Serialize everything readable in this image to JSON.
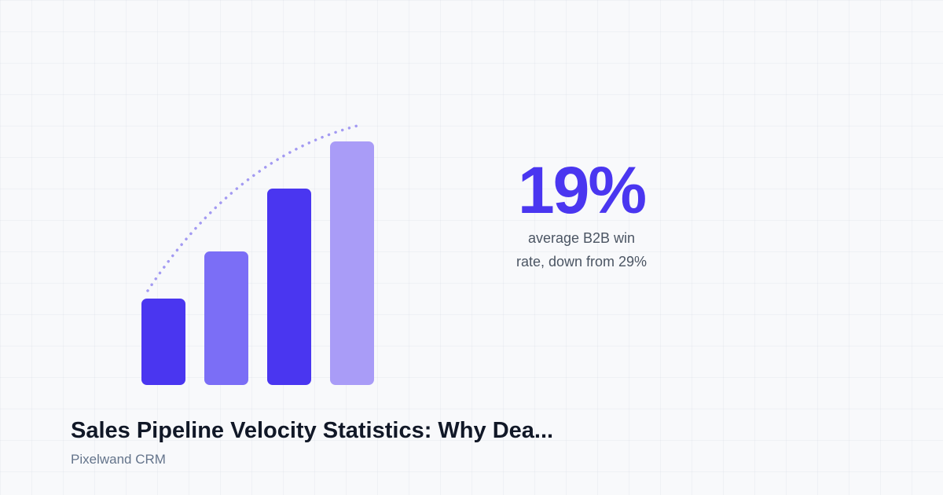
{
  "stat": {
    "value": "19%",
    "description_lines": [
      "average B2B win",
      "rate, down from 29%"
    ]
  },
  "title": "Sales Pipeline Velocity Statistics: Why Dea...",
  "brand": "Pixelwand CRM"
}
